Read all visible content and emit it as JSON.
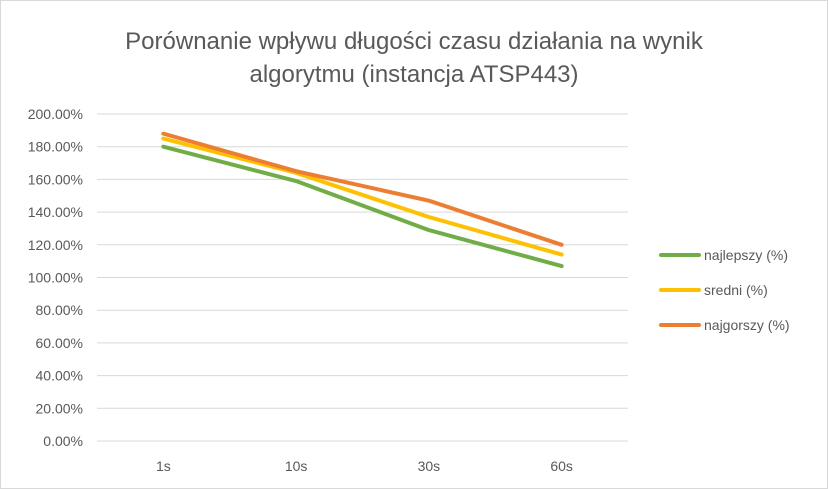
{
  "chart_data": {
    "type": "line",
    "title_lines": [
      "Porównanie wpływu długości czasu działania na wynik",
      "algorytmu (instancja ATSP443)"
    ],
    "categories": [
      "1s",
      "10s",
      "30s",
      "60s"
    ],
    "y_ticks": [
      "0.00%",
      "20.00%",
      "40.00%",
      "60.00%",
      "80.00%",
      "100.00%",
      "120.00%",
      "140.00%",
      "160.00%",
      "180.00%",
      "200.00%"
    ],
    "ylim": [
      0,
      200
    ],
    "grid": true,
    "legend_position": "right",
    "series": [
      {
        "name": "najlepszy (%)",
        "color": "#70ad47",
        "values": [
          180,
          159,
          129,
          107
        ]
      },
      {
        "name": "sredni (%)",
        "color": "#ffc000",
        "values": [
          185,
          164,
          137,
          114
        ]
      },
      {
        "name": "najgorszy (%)",
        "color": "#ed7d31",
        "values": [
          188,
          165,
          147,
          120
        ]
      }
    ]
  }
}
